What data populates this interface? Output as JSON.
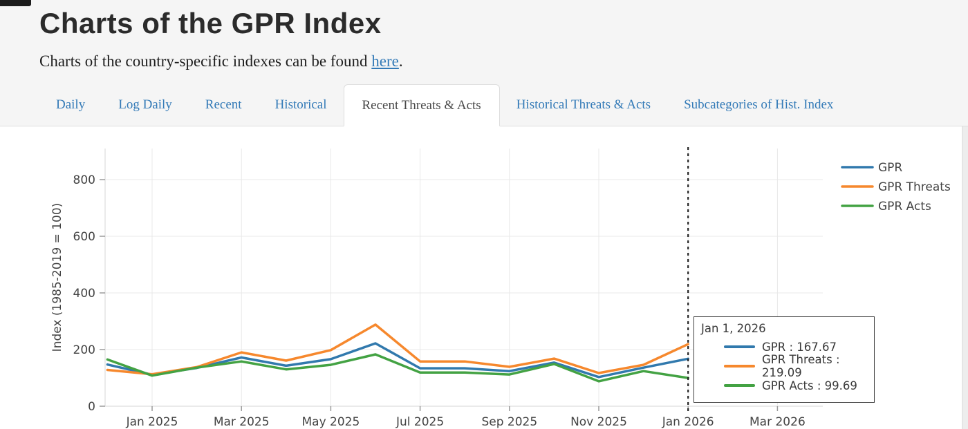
{
  "page": {
    "title": "Charts of the GPR Index",
    "subtitle_prefix": "Charts of the country-specific indexes can be found ",
    "subtitle_link": "here",
    "subtitle_suffix": "."
  },
  "tabs": [
    {
      "label": "Daily",
      "active": false
    },
    {
      "label": "Log Daily",
      "active": false
    },
    {
      "label": "Recent",
      "active": false
    },
    {
      "label": "Historical",
      "active": false
    },
    {
      "label": "Recent Threats & Acts",
      "active": true
    },
    {
      "label": "Historical Threats & Acts",
      "active": false
    },
    {
      "label": "Subcategories of Hist. Index",
      "active": false
    }
  ],
  "colors": {
    "gpr": "#3179ad",
    "gpr_threats": "#f6882d",
    "gpr_acts": "#43a243",
    "link_blue": "#337ab7",
    "tick_text": "#444444",
    "gridline": "#e8e8e8",
    "hover_line": "#222222"
  },
  "chart_data": {
    "type": "line",
    "ylabel": "Index (1985-2019 = 100)",
    "y_ticks": [
      0,
      200,
      400,
      600,
      800
    ],
    "ylim": [
      0,
      910
    ],
    "x_tick_labels": [
      "Jan 2025",
      "Mar 2025",
      "May 2025",
      "Jul 2025",
      "Sep 2025",
      "Nov 2025",
      "Jan 2026",
      "Mar 2026"
    ],
    "x": [
      "Dec 2024",
      "Jan 2025",
      "Feb 2025",
      "Mar 2025",
      "Apr 2025",
      "May 2025",
      "Jun 2025",
      "Jul 2025",
      "Aug 2025",
      "Sep 2025",
      "Oct 2025",
      "Nov 2025",
      "Dec 2025",
      "Jan 2026"
    ],
    "series": [
      {
        "name": "GPR",
        "color": "#3179ad",
        "values": [
          147,
          111,
          135,
          172,
          143,
          166,
          222,
          134,
          134,
          124,
          154,
          103,
          136,
          167.67
        ]
      },
      {
        "name": "GPR Threats",
        "color": "#f6882d",
        "values": [
          128,
          113,
          138,
          190,
          161,
          198,
          288,
          158,
          158,
          139,
          168,
          117,
          146,
          219.09
        ]
      },
      {
        "name": "GPR Acts",
        "color": "#43a243",
        "values": [
          165,
          108,
          136,
          158,
          130,
          146,
          183,
          119,
          119,
          112,
          149,
          88,
          124,
          99.69
        ]
      }
    ],
    "legend": [
      "GPR",
      "GPR Threats",
      "GPR Acts"
    ],
    "legend_position": "top-right-outside",
    "grid": true,
    "hover_x": "Jan 2026"
  },
  "tooltip": {
    "date": "Jan 1, 2026",
    "rows": [
      {
        "label": "GPR",
        "value": "167.67"
      },
      {
        "label": "GPR Threats",
        "value": "219.09"
      },
      {
        "label": "GPR Acts",
        "value": "99.69"
      }
    ]
  }
}
